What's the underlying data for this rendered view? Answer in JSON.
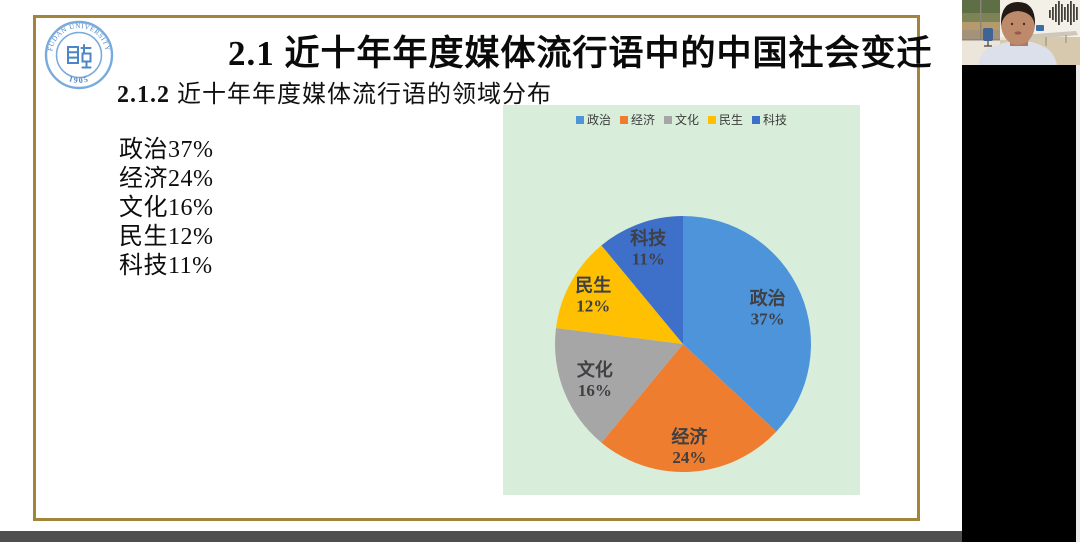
{
  "slide": {
    "logo": {
      "arc_text": "FUDAN UNIVERSITY",
      "year": "1905"
    },
    "title": "2.1 近十年年度媒体流行语中的中国社会变迁",
    "subtitle_number": "2.1.2",
    "subtitle_text": "近十年年度媒体流行语的领域分布",
    "stats": [
      "政治37%",
      "经济24%",
      "文化16%",
      "民生12%",
      "科技11%"
    ]
  },
  "chart_data": {
    "type": "pie",
    "categories": [
      "政治",
      "经济",
      "文化",
      "民生",
      "科技"
    ],
    "values": [
      37,
      24,
      16,
      12,
      11
    ],
    "unit": "%",
    "colors": [
      "#4e94da",
      "#ee7d2f",
      "#a6a6a6",
      "#fec000",
      "#3e6fc9"
    ],
    "legend_position": "top",
    "background": "#d8eedb",
    "start_angle_deg": -90,
    "direction": "clockwise"
  }
}
